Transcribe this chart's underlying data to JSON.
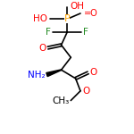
{
  "bg_color": "#ffffff",
  "atom_colors": {
    "O": "#ff0000",
    "N": "#0000ff",
    "P": "#ffa500",
    "F": "#228B22"
  },
  "bond_color": "#000000",
  "bond_width": 1.2,
  "font_size": 7.5,
  "fig_size": [
    1.5,
    1.5
  ],
  "dpi": 100,
  "xlim": [
    20,
    120
  ],
  "ylim": [
    10,
    150
  ]
}
